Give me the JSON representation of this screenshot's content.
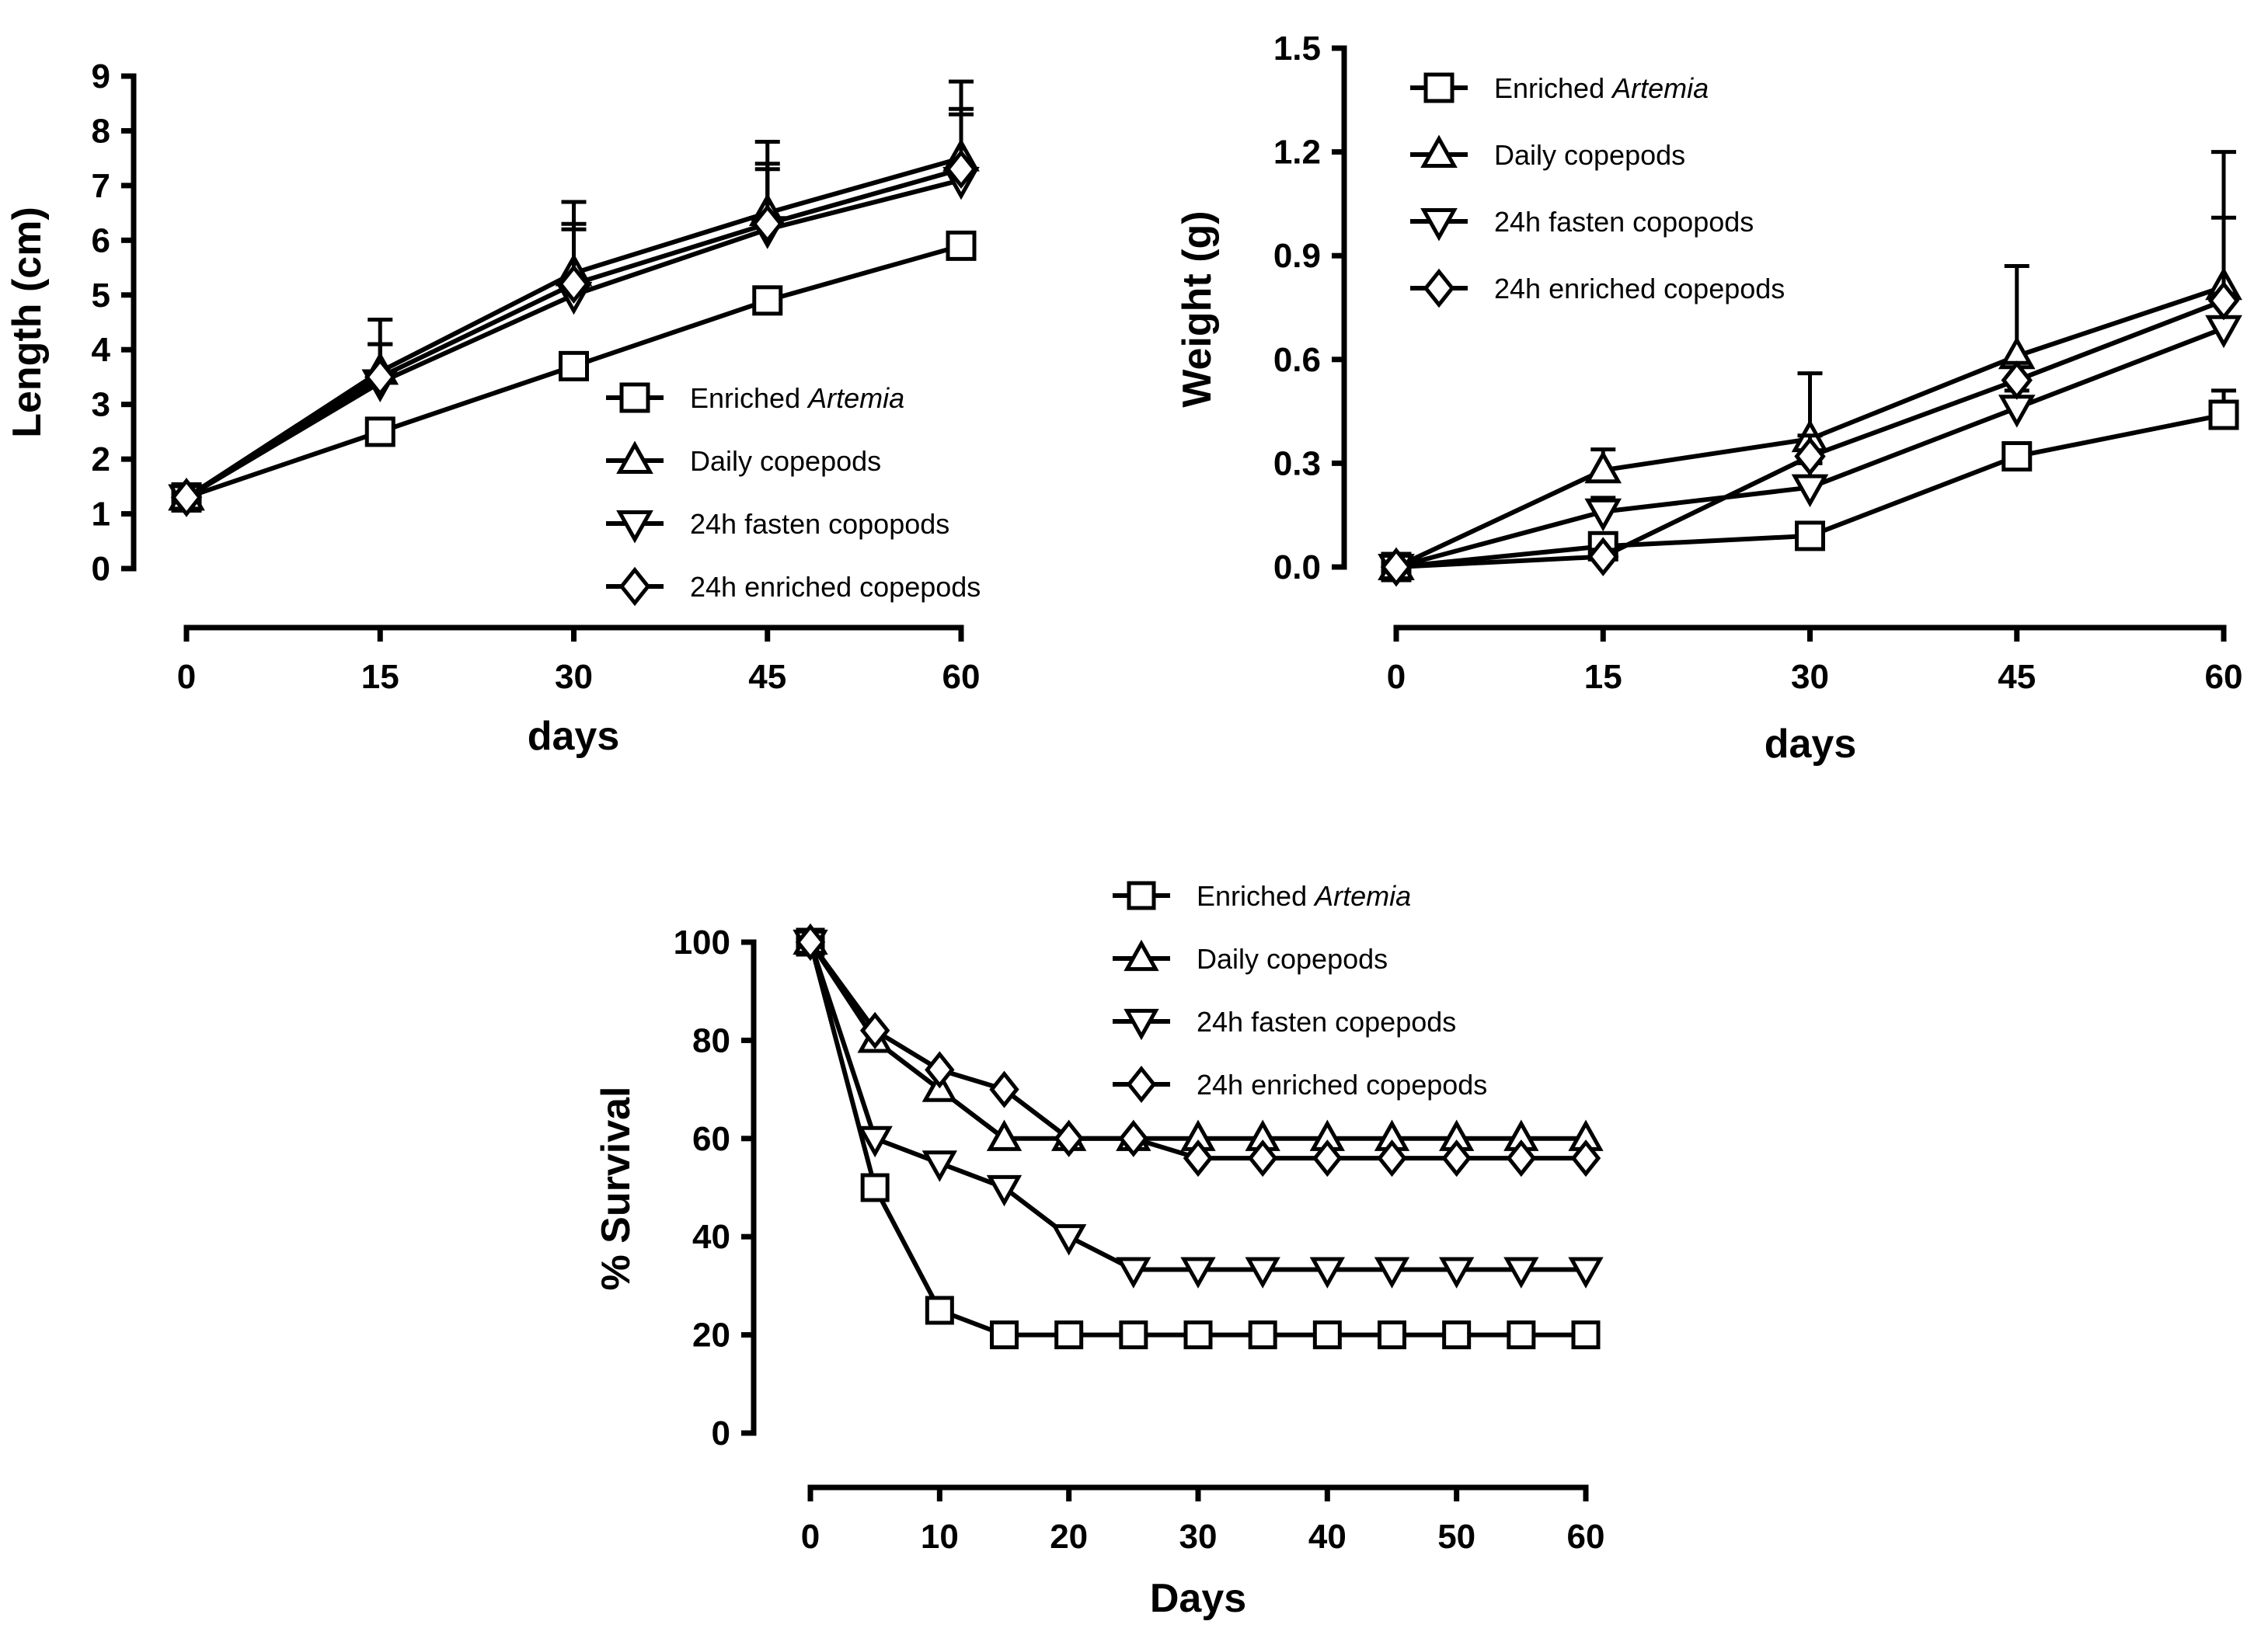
{
  "chart_data": [
    {
      "id": "length",
      "type": "line",
      "title": "",
      "xlabel": "days",
      "ylabel": "Length (cm)",
      "xlim": [
        0,
        60
      ],
      "ylim": [
        0,
        9
      ],
      "xticks": [
        0,
        15,
        30,
        45,
        60
      ],
      "yticks": [
        0,
        1,
        2,
        3,
        4,
        5,
        6,
        7,
        8,
        9
      ],
      "grid": false,
      "legend_position": "bottom-right",
      "x": [
        0,
        15,
        30,
        45,
        60
      ],
      "series": [
        {
          "name": "Enriched Artemia",
          "legend_plain": "Enriched ",
          "legend_italic": "Artemia",
          "marker": "square",
          "values": [
            1.3,
            2.5,
            3.7,
            4.9,
            5.9
          ],
          "errors": [
            0,
            0.15,
            0.2,
            0.2,
            0.2
          ]
        },
        {
          "name": "Daily copepods",
          "legend_plain": "Daily copepods",
          "legend_italic": "",
          "marker": "triangle-up",
          "values": [
            1.3,
            3.6,
            5.4,
            6.5,
            7.5
          ],
          "errors": [
            0,
            0.95,
            1.3,
            1.3,
            1.4
          ]
        },
        {
          "name": "24h fasten copopods",
          "legend_plain": "24h fasten copopods",
          "legend_italic": "",
          "marker": "triangle-down",
          "values": [
            1.3,
            3.4,
            5.0,
            6.2,
            7.1
          ],
          "errors": [
            0,
            0.7,
            1.3,
            1.2,
            1.3
          ]
        },
        {
          "name": "24h enriched copepods",
          "legend_plain": "24h enriched copepods",
          "legend_italic": "",
          "marker": "diamond",
          "values": [
            1.3,
            3.5,
            5.2,
            6.3,
            7.3
          ],
          "errors": [
            0,
            0.6,
            1.0,
            1.0,
            1.0
          ]
        }
      ]
    },
    {
      "id": "weight",
      "type": "line",
      "title": "",
      "xlabel": "days",
      "ylabel": "Weight (g)",
      "xlim": [
        0,
        60
      ],
      "ylim": [
        0,
        1.5
      ],
      "xticks": [
        0,
        15,
        30,
        45,
        60
      ],
      "yticks": [
        0.0,
        0.3,
        0.6,
        0.9,
        1.2,
        1.5
      ],
      "yticklabels": [
        "0.0",
        "0.3",
        "0.6",
        "0.9",
        "1.2",
        "1.5"
      ],
      "grid": false,
      "legend_position": "top-left",
      "x": [
        0,
        15,
        30,
        45,
        60
      ],
      "series": [
        {
          "name": "Enriched Artemia",
          "legend_plain": "Enriched ",
          "legend_italic": "Artemia",
          "marker": "square",
          "values": [
            0.0,
            0.06,
            0.09,
            0.32,
            0.44
          ],
          "errors": [
            0,
            0.02,
            0.02,
            0.03,
            0.07
          ]
        },
        {
          "name": "Daily copepods",
          "legend_plain": "Daily copepods",
          "legend_italic": "",
          "marker": "triangle-up",
          "values": [
            0.0,
            0.28,
            0.37,
            0.61,
            0.81
          ],
          "errors": [
            0,
            0.06,
            0.19,
            0.26,
            0.39
          ]
        },
        {
          "name": "24h fasten copopods",
          "legend_plain": "24h fasten copopods",
          "legend_italic": "",
          "marker": "triangle-down",
          "values": [
            0.0,
            0.16,
            0.23,
            0.46,
            0.69
          ],
          "errors": [
            0,
            0.04,
            0.07,
            0.05,
            0.1
          ]
        },
        {
          "name": "24h enriched copepods",
          "legend_plain": "24h enriched copepods",
          "legend_italic": "",
          "marker": "diamond",
          "values": [
            0.0,
            0.03,
            0.32,
            0.54,
            0.77
          ],
          "errors": [
            0,
            0.02,
            0.06,
            0.05,
            0.24
          ]
        }
      ]
    },
    {
      "id": "survival",
      "type": "line",
      "title": "",
      "xlabel": "Days",
      "ylabel": "% Survival",
      "xlim": [
        0,
        60
      ],
      "ylim": [
        0,
        100
      ],
      "xticks": [
        0,
        10,
        20,
        30,
        40,
        50,
        60
      ],
      "yticks": [
        0,
        20,
        40,
        60,
        80,
        100
      ],
      "grid": false,
      "legend_position": "top-right",
      "x": [
        0,
        5,
        10,
        15,
        20,
        25,
        30,
        35,
        40,
        45,
        50,
        55,
        60
      ],
      "series": [
        {
          "name": "Enriched Artemia",
          "legend_plain": "Enriched ",
          "legend_italic": "Artemia",
          "marker": "square",
          "values": [
            100,
            50,
            25,
            20,
            20,
            20,
            20,
            20,
            20,
            20,
            20,
            20,
            20
          ]
        },
        {
          "name": "Daily copepods",
          "legend_plain": "Daily copepods",
          "legend_italic": "",
          "marker": "triangle-up",
          "values": [
            100,
            80,
            70,
            60,
            60,
            60,
            60,
            60,
            60,
            60,
            60,
            60,
            60
          ]
        },
        {
          "name": "24h fasten copepods",
          "legend_plain": "24h fasten copepods",
          "legend_italic": "",
          "marker": "triangle-down",
          "values": [
            100,
            60,
            55,
            50,
            40,
            33.3,
            33.3,
            33.3,
            33.3,
            33.3,
            33.3,
            33.3,
            33.3
          ]
        },
        {
          "name": "24h enriched copepods",
          "legend_plain": "24h enriched copepods",
          "legend_italic": "",
          "marker": "diamond",
          "values": [
            100,
            82,
            74,
            70,
            60,
            60,
            56,
            56,
            56,
            56,
            56,
            56,
            56
          ]
        }
      ]
    }
  ]
}
